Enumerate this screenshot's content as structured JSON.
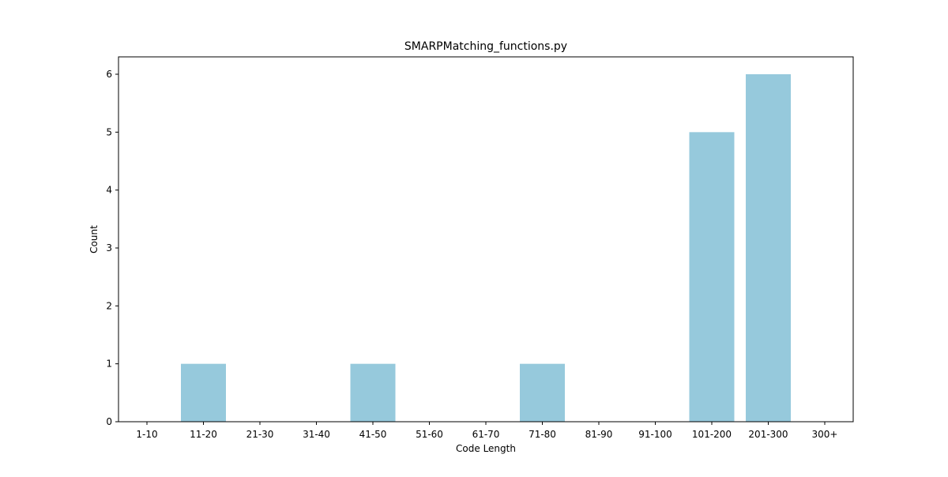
{
  "chart_data": {
    "type": "bar",
    "title": "SMARPMatching_functions.py",
    "xlabel": "Code Length",
    "ylabel": "Count",
    "categories": [
      "1-10",
      "11-20",
      "21-30",
      "31-40",
      "41-50",
      "51-60",
      "61-70",
      "71-80",
      "81-90",
      "91-100",
      "101-200",
      "201-300",
      "300+"
    ],
    "values": [
      0,
      1,
      0,
      0,
      1,
      0,
      0,
      1,
      0,
      0,
      5,
      6,
      0
    ],
    "ylim": [
      0,
      6.3
    ],
    "yticks": [
      0,
      1,
      2,
      3,
      4,
      5,
      6
    ],
    "grid": false,
    "bar_color": "#96c9dc"
  }
}
